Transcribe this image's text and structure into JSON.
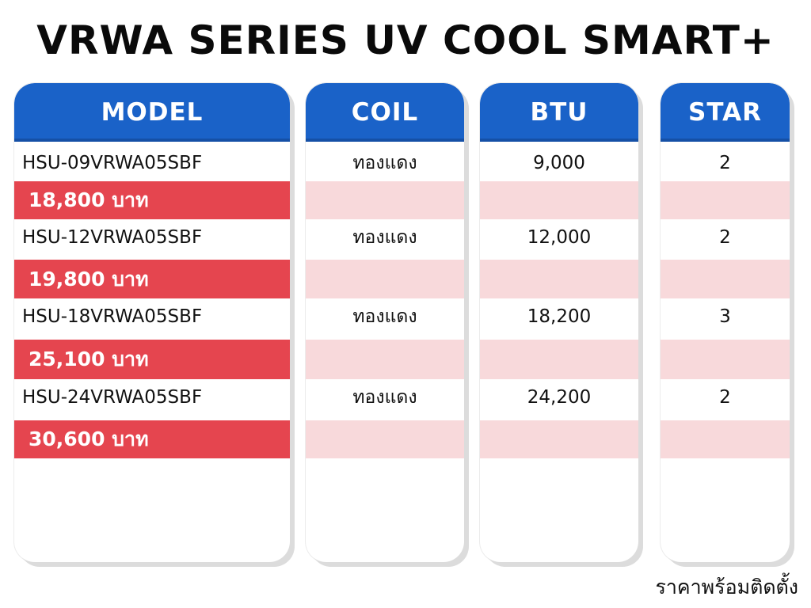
{
  "title": "VRWA SERIES UV COOL SMART+",
  "headers": {
    "model": "MODEL",
    "coil": "COIL",
    "btu": "BTU",
    "star": "STAR"
  },
  "rows": [
    {
      "model": "HSU-09VRWA05SBF",
      "coil": "ทองแดง",
      "btu": "9,000",
      "star": "2",
      "price": "18,800 บาท"
    },
    {
      "model": "HSU-12VRWA05SBF",
      "coil": "ทองแดง",
      "btu": "12,000",
      "star": "2",
      "price": "19,800 บาท"
    },
    {
      "model": "HSU-18VRWA05SBF",
      "coil": "ทองแดง",
      "btu": "18,200",
      "star": "3",
      "price": "25,100 บาท"
    },
    {
      "model": "HSU-24VRWA05SBF",
      "coil": "ทองแดง",
      "btu": "24,200",
      "star": "2",
      "price": "30,600 บาท"
    }
  ],
  "footer": "ราคาพร้อมติดตั้ง",
  "colors": {
    "header_blue": "#1a62c8",
    "price_red": "#e5454f",
    "band_pink": "#f8d9db"
  }
}
